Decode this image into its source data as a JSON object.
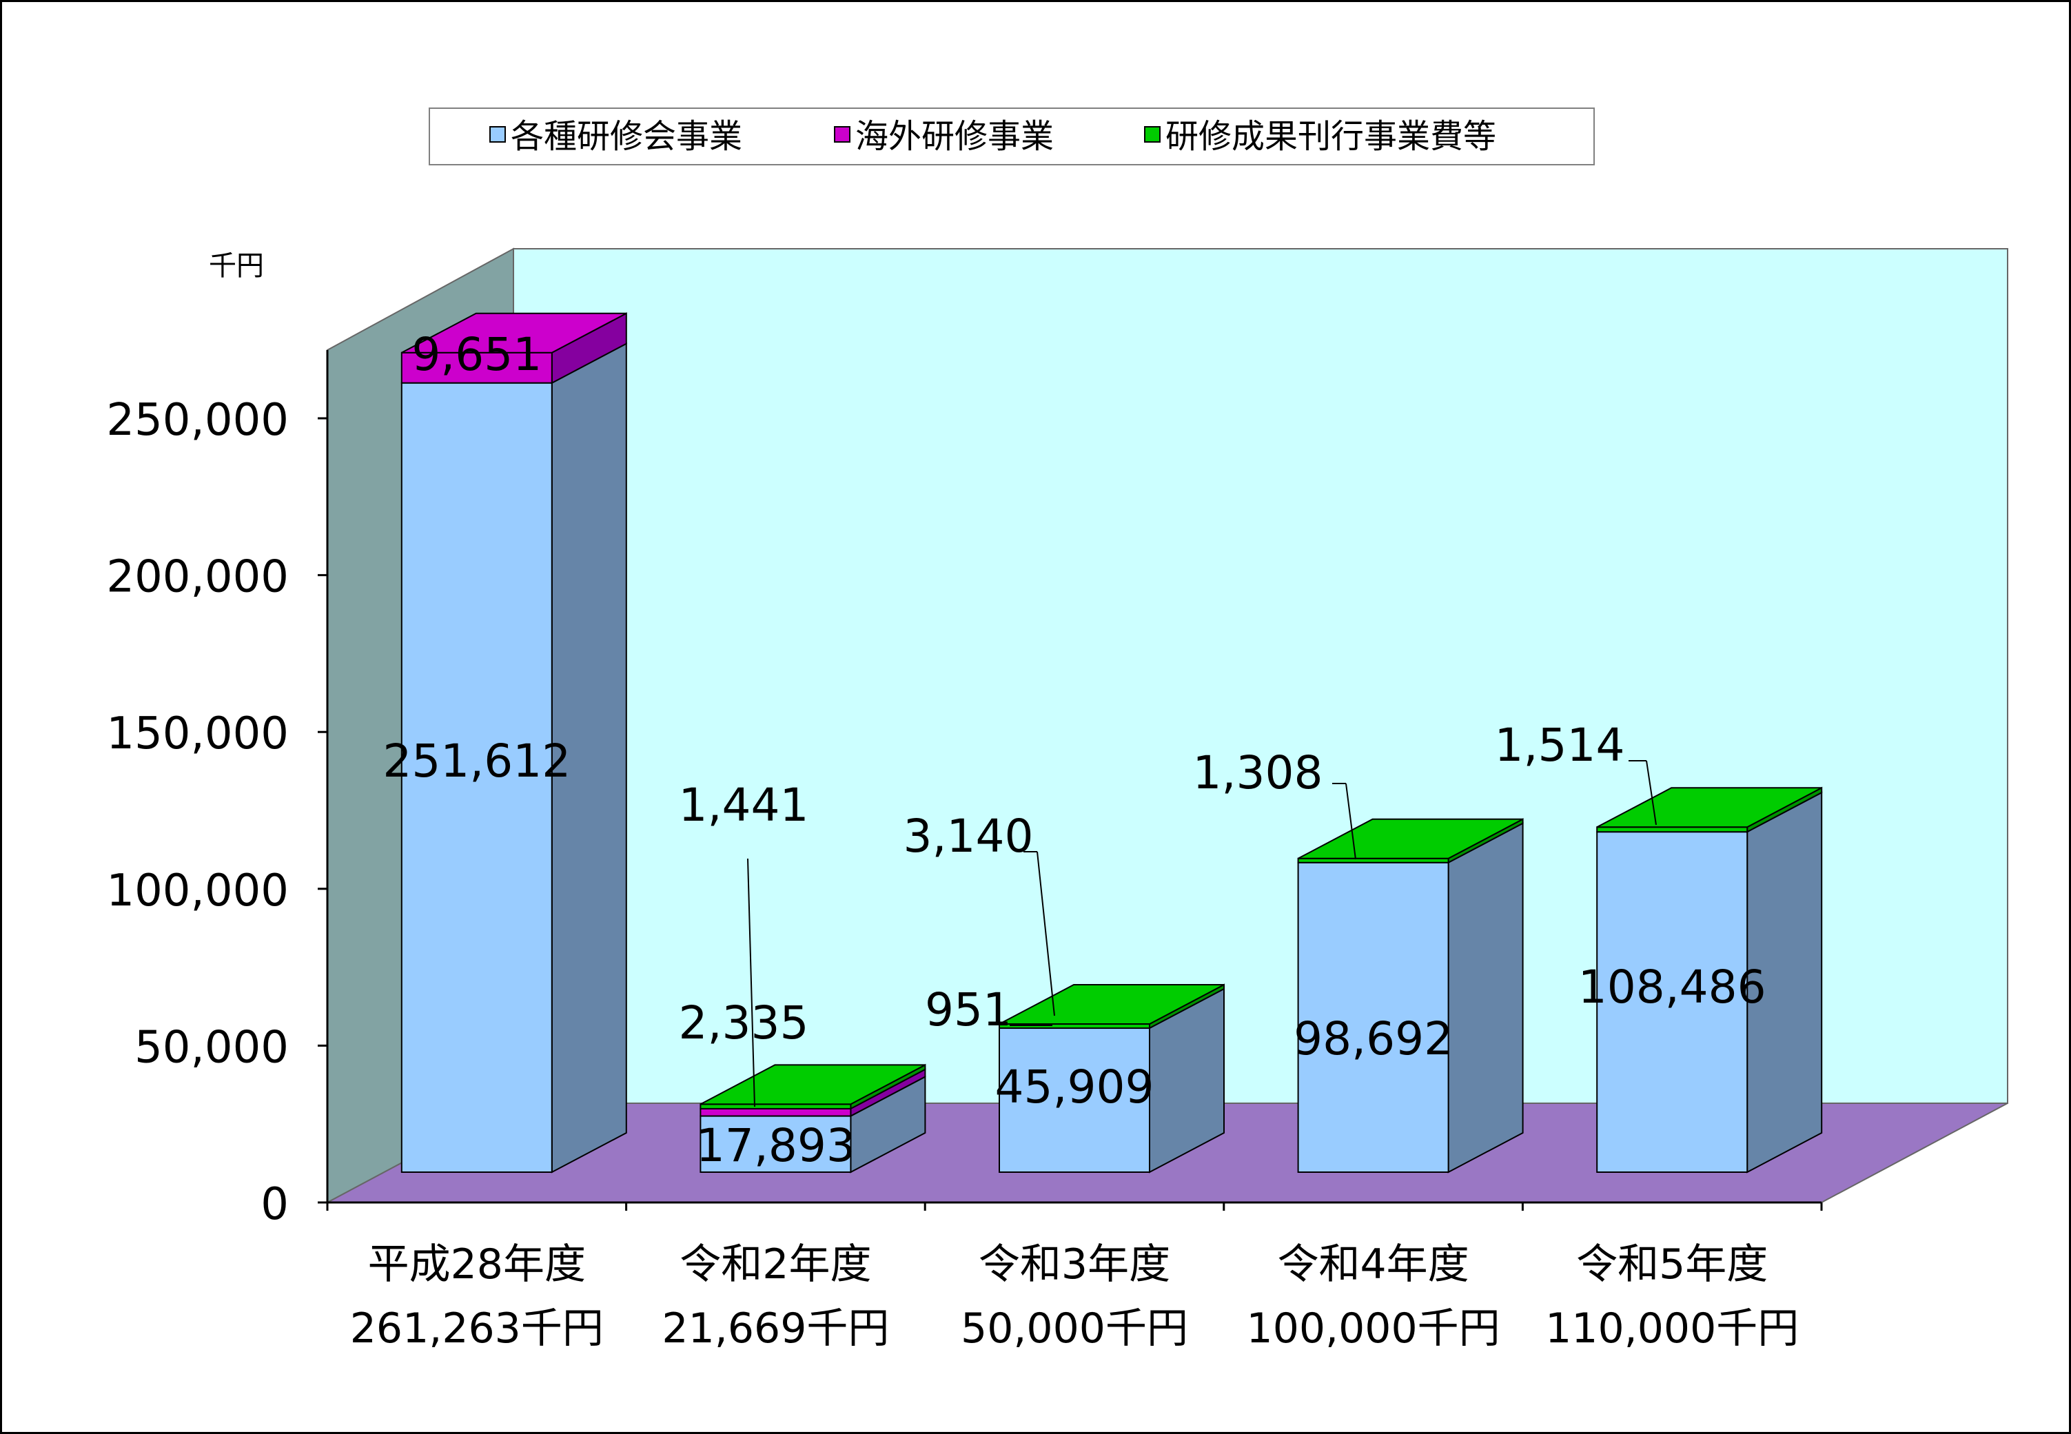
{
  "chart_data": {
    "type": "bar",
    "stacked": true,
    "three_d": true,
    "unit_label": "千円",
    "title": "",
    "xlabel": "",
    "ylabel": "",
    "ylim": [
      0,
      270000
    ],
    "y_ticks": [
      0,
      50000,
      100000,
      150000,
      200000,
      250000
    ],
    "y_tick_labels": [
      "0",
      "50,000",
      "100,000",
      "150,000",
      "200,000",
      "250,000"
    ],
    "legend_position": "top",
    "categories": [
      {
        "name": "平成28年度",
        "total_label": "261,263千円"
      },
      {
        "name": "令和2年度",
        "total_label": "21,669千円"
      },
      {
        "name": "令和3年度",
        "total_label": "50,000千円"
      },
      {
        "name": "令和4年度",
        "total_label": "100,000千円"
      },
      {
        "name": "令和5年度",
        "total_label": "110,000千円"
      }
    ],
    "series": [
      {
        "name": "各種研修会事業",
        "color": "#99CCFF",
        "values": [
          251612,
          17893,
          45909,
          98692,
          108486
        ],
        "labels": [
          "251,612",
          "17,893",
          "45,909",
          "98,692",
          "108,486"
        ]
      },
      {
        "name": "海外研修事業",
        "color": "#CC00CC",
        "values": [
          9651,
          2335,
          0,
          0,
          0
        ],
        "labels": [
          "9,651",
          "2,335",
          "",
          "",
          ""
        ]
      },
      {
        "name": "研修成果刊行事業費等",
        "color": "#00CC00",
        "values": [
          0,
          1441,
          951,
          1308,
          1514
        ],
        "labels": [
          "",
          "1,441",
          "951",
          "1,308",
          "1,514"
        ]
      }
    ],
    "extra_labels": [
      {
        "category": 2,
        "text": "3,140"
      }
    ],
    "colors": {
      "back_wall": "#CCFFFF",
      "side_wall": "#82A3A3",
      "floor": "#9A77C4",
      "bar_side_blue": "#6685A8"
    }
  }
}
